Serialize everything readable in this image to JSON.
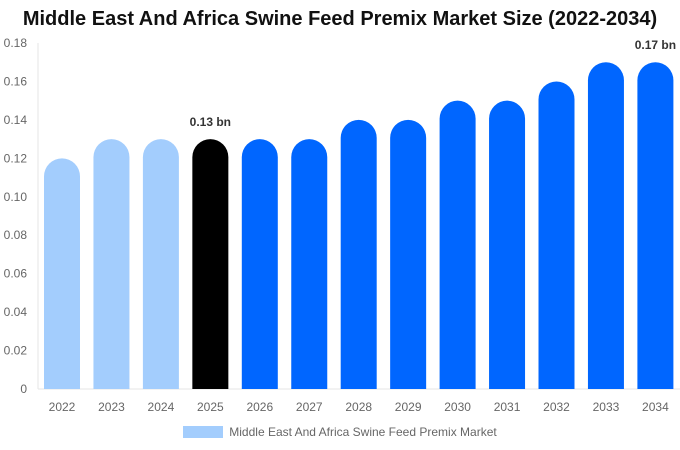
{
  "chart_data": {
    "type": "bar",
    "title": "Middle East And Africa Swine Feed Premix Market Size (2022-2034)",
    "categories": [
      "2022",
      "2023",
      "2024",
      "2025",
      "2026",
      "2027",
      "2028",
      "2029",
      "2030",
      "2031",
      "2032",
      "2033",
      "2034"
    ],
    "series": [
      {
        "name": "Middle East And Africa Swine Feed Premix Market",
        "values": [
          0.12,
          0.13,
          0.13,
          0.13,
          0.13,
          0.13,
          0.14,
          0.14,
          0.15,
          0.15,
          0.16,
          0.17,
          0.17
        ]
      }
    ],
    "ylim": [
      0,
      0.18
    ],
    "yticks": [
      "0",
      "0.02",
      "0.04",
      "0.06",
      "0.08",
      "0.10",
      "0.12",
      "0.14",
      "0.16",
      "0.18"
    ],
    "data_labels": [
      {
        "category": "2025",
        "text": "0.13 bn"
      },
      {
        "category": "2034",
        "text": "0.17 bn"
      }
    ],
    "bar_colors": {
      "historical": "#a3cdfd",
      "current": "#000000",
      "forecast": "#0066ff"
    },
    "grid": false,
    "legend_position": "bottom"
  }
}
